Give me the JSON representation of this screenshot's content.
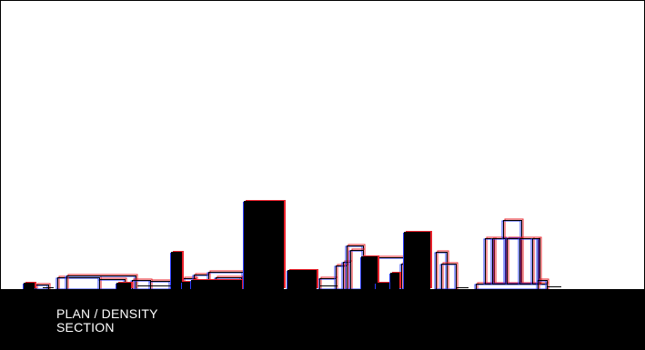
{
  "caption": {
    "line1": "PLAN / DENSITY",
    "line2": "SECTION"
  },
  "colors": {
    "ink": "#000000",
    "offset_red": "#e8202a",
    "offset_blue": "#2a3cff",
    "paper": "#ffffff"
  }
}
